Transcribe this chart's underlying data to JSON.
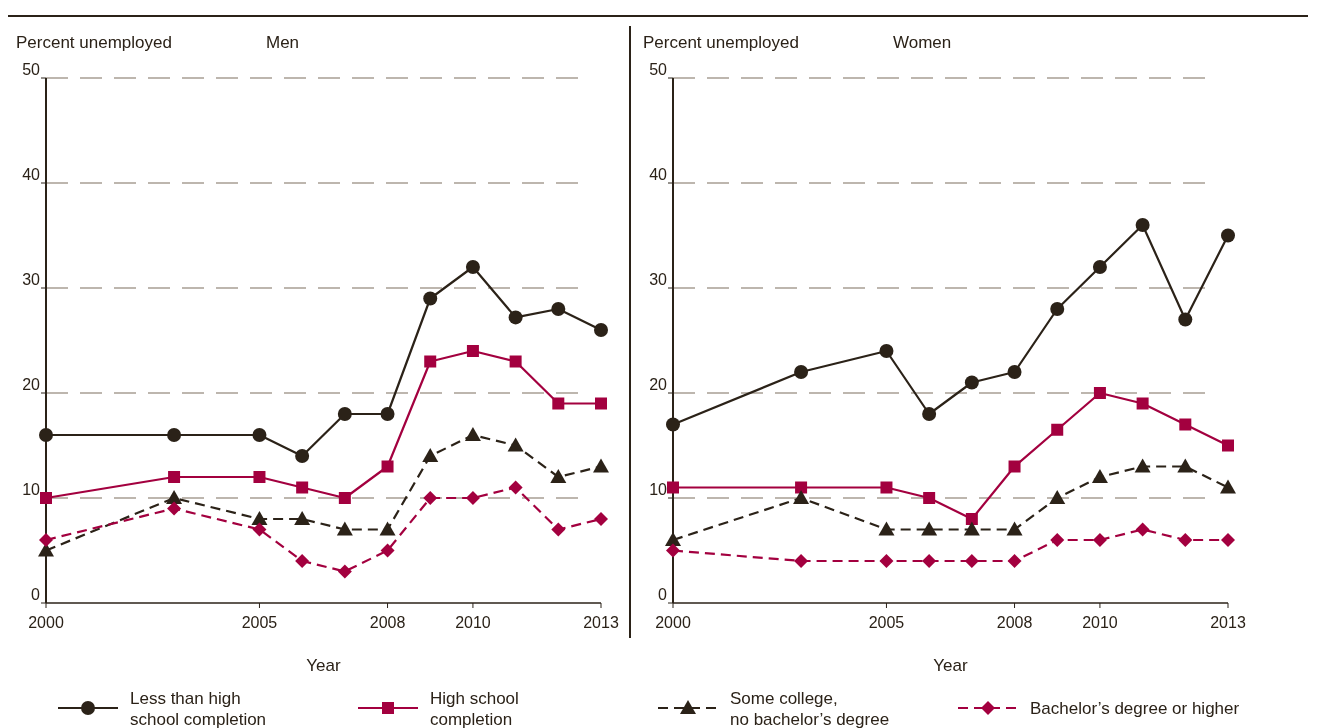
{
  "chart_data": [
    {
      "type": "line",
      "subtitle": "Men",
      "ylabel": "Percent unemployed",
      "xlabel": "Year",
      "x": [
        2000,
        2003,
        2005,
        2006,
        2007,
        2008,
        2009,
        2010,
        2011,
        2012,
        2013
      ],
      "xlim": [
        2000,
        2013
      ],
      "xticks": [
        2000,
        2005,
        2008,
        2010,
        2013
      ],
      "ylim": [
        0,
        50
      ],
      "yticks": [
        0,
        10,
        20,
        30,
        40,
        50
      ],
      "grid": "y",
      "legend": "bottom",
      "series": [
        {
          "name": "Less than high school completion",
          "color": "#2b2218",
          "marker": "circle",
          "line_style": "solid",
          "values": [
            16,
            16,
            16,
            14,
            18,
            18,
            29,
            32,
            27.2,
            28,
            26
          ]
        },
        {
          "name": "High school completion",
          "color": "#a3003f",
          "marker": "square",
          "line_style": "solid",
          "values": [
            10,
            12,
            12,
            11,
            10,
            13,
            23,
            24,
            23,
            19,
            19
          ]
        },
        {
          "name": "Some college, no bachelor’s degree",
          "color": "#2b2218",
          "marker": "triangle",
          "line_style": "dashed",
          "values": [
            5,
            10,
            8,
            8,
            7,
            7,
            14,
            16,
            15,
            12,
            13
          ]
        },
        {
          "name": "Bachelor’s degree or higher",
          "color": "#a3003f",
          "marker": "diamond",
          "line_style": "dashed",
          "values": [
            6,
            9,
            7,
            4,
            3,
            5,
            10,
            10,
            11,
            7,
            8
          ]
        }
      ]
    },
    {
      "type": "line",
      "subtitle": "Women",
      "ylabel": "Percent unemployed",
      "xlabel": "Year",
      "x": [
        2000,
        2003,
        2005,
        2006,
        2007,
        2008,
        2009,
        2010,
        2011,
        2012,
        2013
      ],
      "xlim": [
        2000,
        2013
      ],
      "xticks": [
        2000,
        2005,
        2008,
        2010,
        2013
      ],
      "ylim": [
        0,
        50
      ],
      "yticks": [
        0,
        10,
        20,
        30,
        40,
        50
      ],
      "grid": "y",
      "series": [
        {
          "color": "#2b2218",
          "marker": "circle",
          "line_style": "solid",
          "values": [
            17,
            22,
            24,
            18,
            21,
            22,
            28,
            32,
            36,
            27,
            35
          ]
        },
        {
          "color": "#a3003f",
          "marker": "square",
          "line_style": "solid",
          "values": [
            11,
            11,
            11,
            10,
            8,
            13,
            16.5,
            20,
            19,
            17,
            15
          ]
        },
        {
          "color": "#2b2218",
          "marker": "triangle",
          "line_style": "dashed",
          "values": [
            6,
            10,
            7,
            7,
            7,
            7,
            10,
            12,
            13,
            13,
            11
          ]
        },
        {
          "color": "#a3003f",
          "marker": "diamond",
          "line_style": "dashed",
          "values": [
            5,
            4,
            4,
            4,
            4,
            4,
            6,
            6,
            7,
            6,
            6
          ]
        }
      ]
    }
  ]
}
